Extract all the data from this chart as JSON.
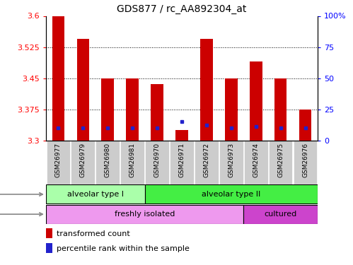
{
  "title": "GDS877 / rc_AA892304_at",
  "samples": [
    "GSM26977",
    "GSM26979",
    "GSM26980",
    "GSM26981",
    "GSM26970",
    "GSM26971",
    "GSM26972",
    "GSM26973",
    "GSM26974",
    "GSM26975",
    "GSM26976"
  ],
  "transformed_count": [
    3.6,
    3.545,
    3.45,
    3.45,
    3.435,
    3.325,
    3.545,
    3.45,
    3.49,
    3.45,
    3.375
  ],
  "percentile_rank": [
    10,
    10,
    10,
    10,
    10,
    15,
    12,
    10,
    11,
    10,
    10
  ],
  "ylim_left": [
    3.3,
    3.6
  ],
  "ylim_right": [
    0,
    100
  ],
  "yticks_left": [
    3.3,
    3.375,
    3.45,
    3.525,
    3.6
  ],
  "yticks_right": [
    0,
    25,
    50,
    75,
    100
  ],
  "ytick_right_labels": [
    "0",
    "25",
    "50",
    "75",
    "100%"
  ],
  "bar_color": "#cc0000",
  "dot_color": "#2222cc",
  "cell_type_groups": [
    {
      "label": "alveolar type I",
      "start": 0,
      "end": 3,
      "color": "#aaffaa"
    },
    {
      "label": "alveolar type II",
      "start": 4,
      "end": 10,
      "color": "#44ee44"
    }
  ],
  "protocol_groups": [
    {
      "label": "freshly isolated",
      "start": 0,
      "end": 7,
      "color": "#ee99ee"
    },
    {
      "label": "cultured",
      "start": 8,
      "end": 10,
      "color": "#cc44cc"
    }
  ],
  "legend_items": [
    {
      "label": "transformed count",
      "color": "#cc0000"
    },
    {
      "label": "percentile rank within the sample",
      "color": "#2222cc"
    }
  ],
  "bar_width": 0.5,
  "baseline": 3.3,
  "tick_label_bg": "#cccccc"
}
